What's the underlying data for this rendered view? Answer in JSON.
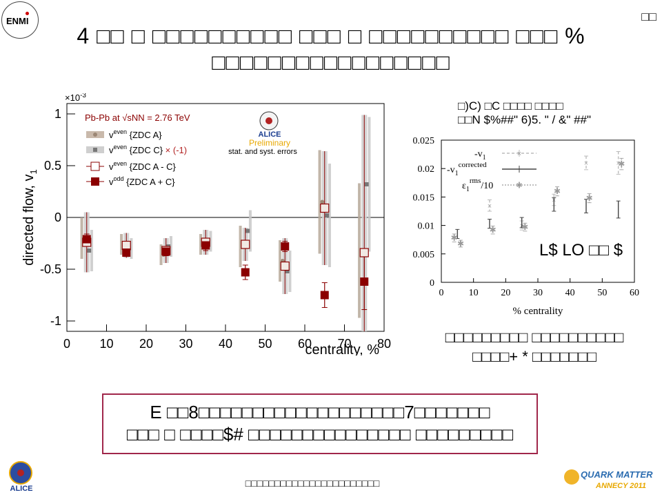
{
  "slide": {
    "logo_text": "ENMI",
    "page_marker": "□□",
    "title_line1": "4 □□ □ □□□□□□□□□□ □□□ □ □□□□□□□□□□ □□□ %",
    "title_line2": "□□□□□□□□□□□□□□□□□",
    "side_caption_line1": "□□□□□□□□□ □□□□□□□□□□",
    "side_caption_line2": "□□□□+ * □□□□□□□",
    "box_line1": "E □□8□□□□□□□□□□□□□□□□□□□7□□□□□□□",
    "box_line2": "□□□ □ □□□□$# □□□□□□□□□□□□□□□ □□□□□□□□□",
    "footer": "□□□□□□□□□□□□□□□□□□□□□□□",
    "qm_logo_line1": "QUARK MATTER",
    "qm_logo_line2": "ANNECY 2011",
    "alice_logo_text": "ALICE"
  },
  "colors": {
    "dark_red": "#8b0000",
    "grey_band": "#c8c8c8",
    "box_border": "#a0264a",
    "legend_red": "#b22222",
    "alice_orange": "#e8a800"
  },
  "chart_data": [
    {
      "type": "scatter",
      "xlabel": "centrality, %",
      "ylabel": "directed flow, v",
      "ylabel_sub": "1",
      "y_scale_label": "×10",
      "y_scale_exp": "-3",
      "xlim": [
        0,
        80
      ],
      "ylim": [
        -1.1,
        1.1
      ],
      "x_ticks": [
        0,
        10,
        20,
        30,
        40,
        50,
        60,
        70,
        80
      ],
      "y_ticks": [
        -1,
        -0.5,
        0,
        0.5,
        1
      ],
      "annotation": "Pb-Pb at √sNN = 2.76 TeV",
      "alice_label": "ALICE",
      "preliminary": "Preliminary",
      "errors_note": "stat. and syst. errors",
      "legend": [
        "v1even {ZDC A}",
        "v1even {ZDC C} × (-1)",
        "v1even {ZDC A - C}",
        "v1odd {ZDC A + C}"
      ],
      "series": [
        {
          "name": "v1even {ZDC A}",
          "x": [
            5,
            15,
            25,
            35,
            45,
            55,
            65,
            75
          ],
          "y": [
            -0.2,
            -0.26,
            -0.36,
            -0.26,
            -0.28,
            -0.42,
            0.15,
            -0.32
          ],
          "syst": [
            0.2,
            0.1,
            0.1,
            0.1,
            0.2,
            0.2,
            0.5,
            0.65
          ]
        },
        {
          "name": "v1even {ZDC C} × (-1)",
          "x": [
            5,
            15,
            25,
            35,
            45,
            55,
            65,
            75
          ],
          "y": [
            -0.32,
            -0.3,
            -0.28,
            -0.23,
            -0.13,
            -0.52,
            0.02,
            0.32
          ],
          "syst": [
            0.2,
            0.1,
            0.1,
            0.1,
            0.2,
            0.2,
            0.5,
            0.65
          ]
        },
        {
          "name": "v1even {ZDC A - C}",
          "x": [
            5,
            15,
            25,
            35,
            45,
            55,
            65,
            75
          ],
          "y": [
            -0.24,
            -0.27,
            -0.32,
            -0.24,
            -0.26,
            -0.47,
            0.09,
            -0.34
          ],
          "syst": [
            0.29,
            0.12,
            0.12,
            0.12,
            0.16,
            0.27,
            0.55,
            1.33
          ]
        },
        {
          "name": "v1odd {ZDC A + C}",
          "x": [
            5,
            15,
            25,
            35,
            45,
            55,
            65,
            75
          ],
          "y": [
            -0.21,
            -0.34,
            -0.33,
            -0.27,
            -0.53,
            -0.28,
            -0.75,
            -0.62
          ],
          "err": [
            0.05,
            0.03,
            0.04,
            0.05,
            0.07,
            0.05,
            0.12,
            0.27
          ]
        }
      ]
    },
    {
      "type": "scatter",
      "title_line1": "□)C) □C □□□□ □□□□",
      "title_line2": "□□N $%##\" 6)5. \" / &\" ##\"",
      "xlabel": "% centrality",
      "xlim": [
        0,
        60
      ],
      "ylim": [
        0,
        0.025
      ],
      "x_ticks": [
        0,
        10,
        20,
        30,
        40,
        50,
        60
      ],
      "y_ticks": [
        0,
        0.005,
        0.01,
        0.015,
        0.02,
        0.025
      ],
      "y_tick_labels": [
        "0",
        "0.005",
        "0.01",
        "0.015",
        "0.02",
        "0.025"
      ],
      "inset_text": "L$ LO □□ $",
      "legend": [
        "-v1",
        "-v1corrected",
        "ε1rms/10"
      ],
      "series": [
        {
          "name": "-v1",
          "x": [
            15,
            25,
            35,
            45,
            55
          ],
          "y": [
            0.0135,
            0.01,
            0.0145,
            0.021,
            0.021
          ],
          "err": [
            0.001,
            0.0008,
            0.001,
            0.0012,
            0.002
          ]
        },
        {
          "name": "-v1corrected",
          "x": [
            5,
            15,
            25,
            35,
            45,
            55
          ],
          "y": [
            0.0085,
            0.0103,
            0.0105,
            0.0137,
            0.0134,
            0.0128
          ],
          "err": [
            0.0008,
            0.0008,
            0.0009,
            0.0012,
            0.0012,
            0.0015
          ]
        },
        {
          "name": "ε1rms/10",
          "x": [
            4,
            6,
            16,
            26,
            36,
            46,
            56
          ],
          "y": [
            0.0078,
            0.0068,
            0.0092,
            0.0097,
            0.016,
            0.0148,
            0.0208
          ],
          "err": [
            0.0007,
            0.0006,
            0.0007,
            0.0007,
            0.0008,
            0.0008,
            0.001
          ]
        }
      ]
    }
  ]
}
